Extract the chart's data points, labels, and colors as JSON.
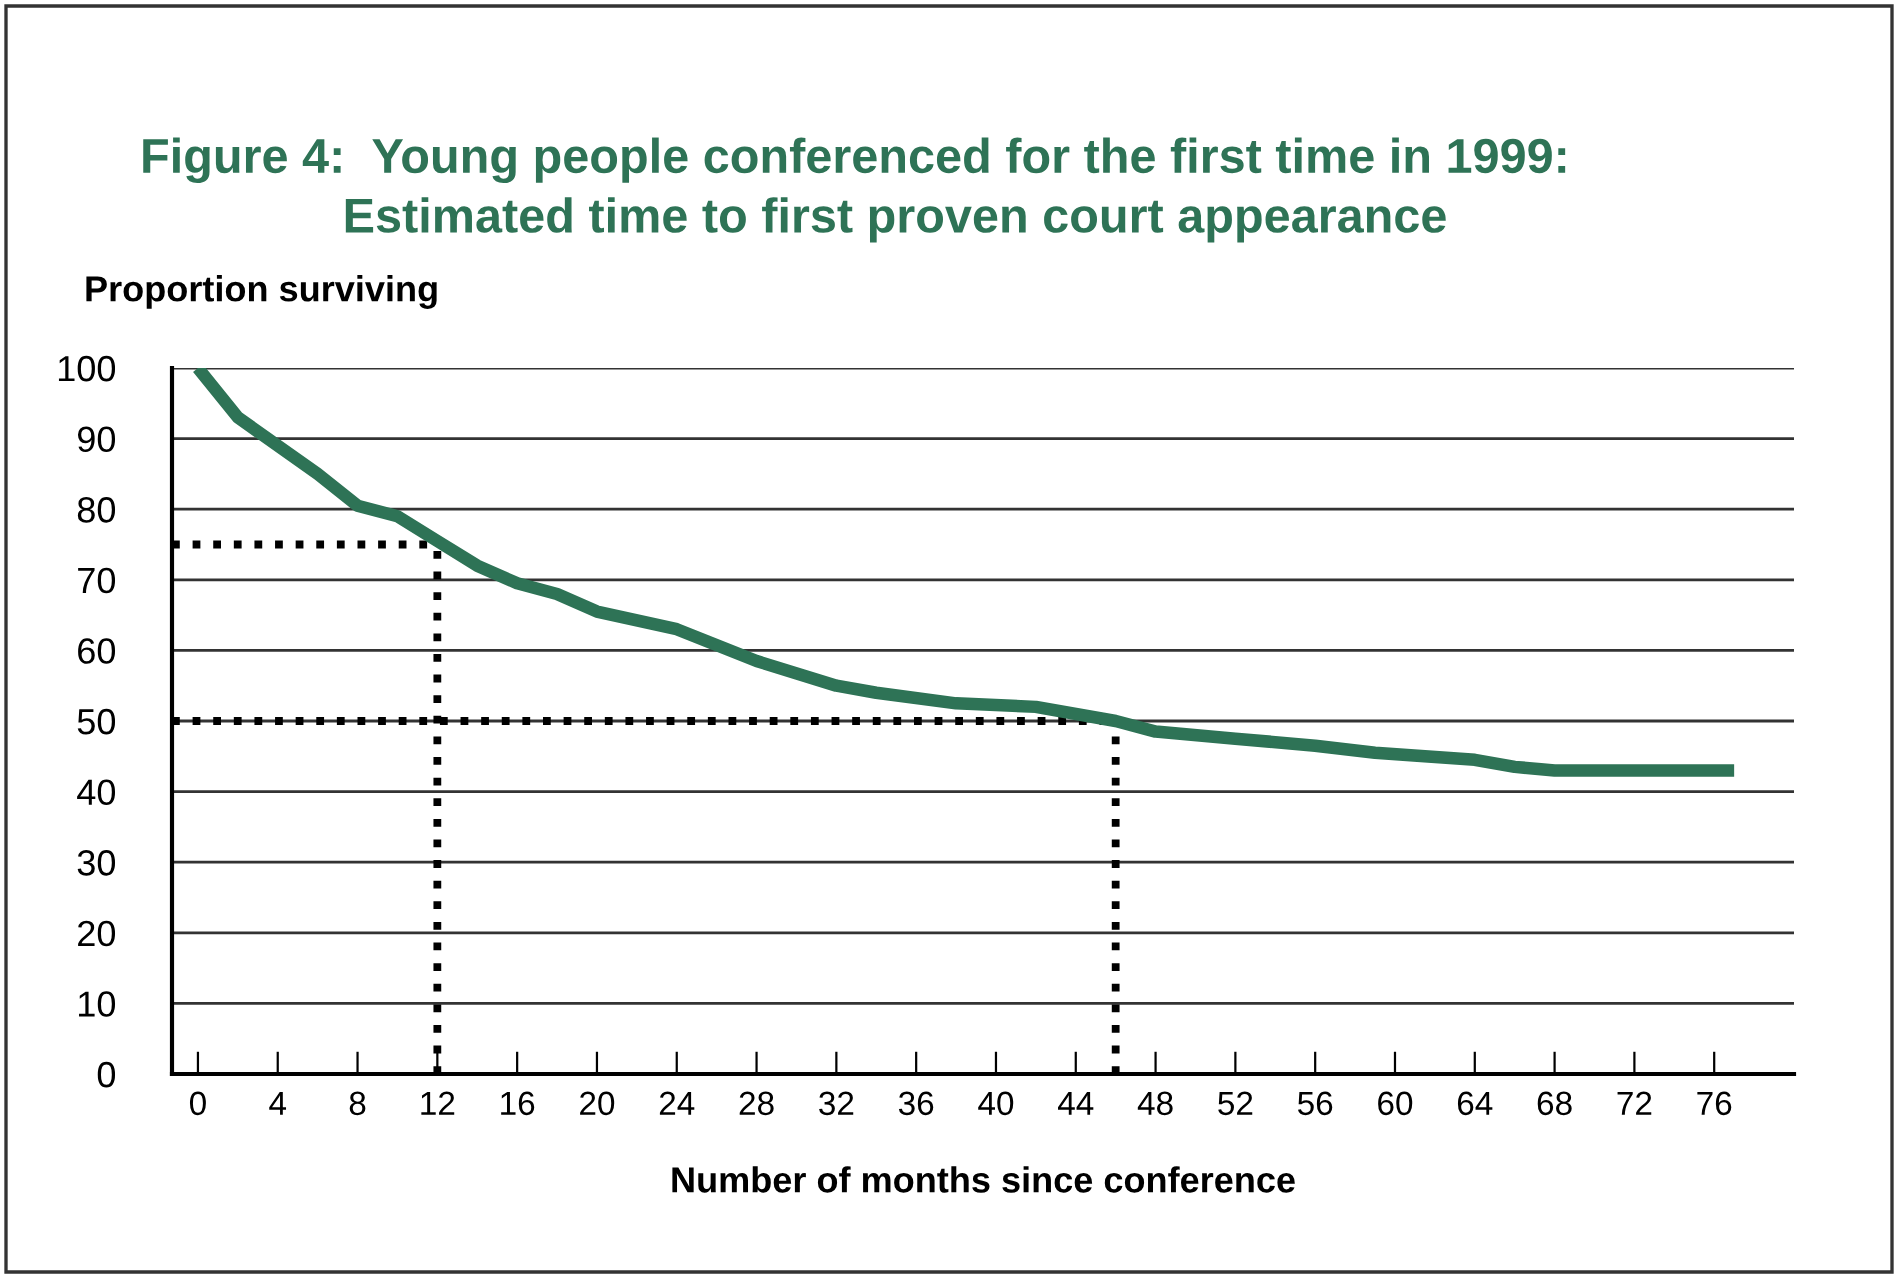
{
  "chart_data": {
    "type": "line",
    "title": "Figure 4:  Young people conferenced for the first time in 1999:\n               Estimated time to first proven court appearance",
    "xlabel": "Number of months since conference",
    "ylabel": "Proportion surviving",
    "series": [
      {
        "color": "#2e7356",
        "x": [
          0,
          2,
          6,
          8,
          10,
          12,
          14,
          16,
          18,
          20,
          24,
          28,
          32,
          34,
          38,
          42,
          46,
          48,
          52,
          56,
          59,
          64,
          66,
          68,
          70,
          73,
          77
        ],
        "values": [
          100,
          93,
          85,
          80.5,
          79,
          75.5,
          72,
          69.5,
          68,
          65.5,
          63,
          58.5,
          55,
          54,
          52.5,
          52,
          50,
          48.5,
          47.5,
          46.5,
          45.5,
          44.5,
          43.5,
          43,
          43,
          43,
          43
        ]
      }
    ],
    "xlim": [
      -1.3,
      80
    ],
    "ylim": [
      0,
      100
    ],
    "xticks": [
      0,
      4,
      8,
      12,
      16,
      20,
      24,
      28,
      32,
      36,
      40,
      44,
      48,
      52,
      56,
      60,
      64,
      68,
      72,
      76
    ],
    "yticks": [
      0,
      10,
      20,
      30,
      40,
      50,
      60,
      70,
      80,
      90,
      100
    ],
    "grid": "y",
    "line_style": "solid",
    "ref_lines": [
      {
        "axis": "x",
        "value": 12,
        "line_style": "dotted",
        "color": "#000000"
      },
      {
        "axis": "y",
        "value": 75,
        "line_style": "dotted",
        "color": "#000000"
      },
      {
        "axis": "x",
        "value": 46,
        "line_style": "dotted",
        "color": "#000000"
      },
      {
        "axis": "y",
        "value": 50,
        "line_style": "dotted",
        "color": "#000000"
      }
    ]
  }
}
